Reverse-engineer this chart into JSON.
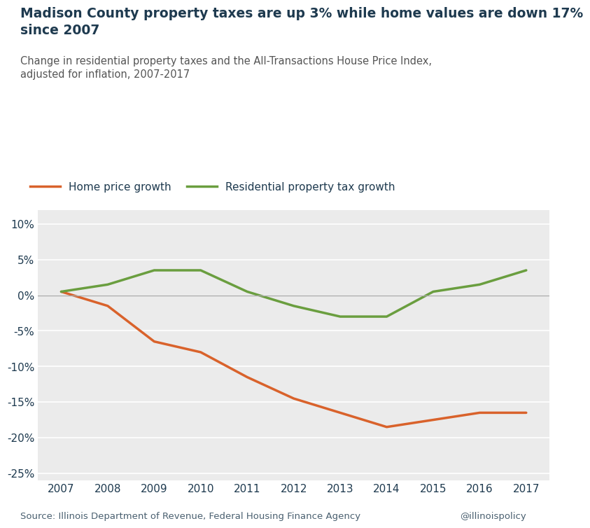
{
  "title_bold": "Madison County property taxes are up 3% while home values are down 17%\nsince 2007",
  "subtitle": "Change in residential property taxes and the All-Transactions House Price Index,\nadjusted for inflation, 2007-2017",
  "source": "Source: Illinois Department of Revenue, Federal Housing Finance Agency",
  "watermark": "@illinoispolicy",
  "years": [
    2007,
    2008,
    2009,
    2010,
    2011,
    2012,
    2013,
    2014,
    2015,
    2016,
    2017
  ],
  "home_price": [
    0.5,
    -1.5,
    -6.5,
    -8.0,
    -11.5,
    -14.5,
    -16.5,
    -18.5,
    -17.5,
    -16.5,
    -16.5
  ],
  "property_tax": [
    0.5,
    1.5,
    3.5,
    3.5,
    0.5,
    -1.5,
    -3.0,
    -3.0,
    0.5,
    1.5,
    3.5
  ],
  "home_color": "#d9622b",
  "tax_color": "#6a9e3f",
  "ylim": [
    -26,
    12
  ],
  "yticks": [
    -25,
    -20,
    -15,
    -10,
    -5,
    0,
    5,
    10
  ],
  "bg_color": "#ffffff",
  "plot_bg": "#ebebeb",
  "zero_line_color": "#aaaaaa",
  "grid_color": "#ffffff",
  "legend_home": "Home price growth",
  "legend_tax": "Residential property tax growth",
  "title_color": "#1e3a4f",
  "subtitle_color": "#555555",
  "source_color": "#4a6070"
}
